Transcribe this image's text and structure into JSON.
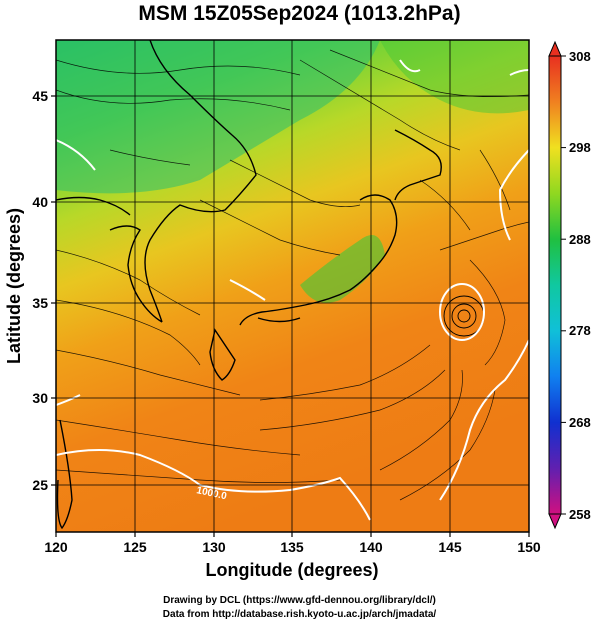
{
  "title": "MSM 15Z05Sep2024 (1013.2hPa)",
  "map": {
    "x_axis": {
      "label": "Longitude (degrees)",
      "range": [
        120,
        150
      ],
      "ticks": [
        120,
        125,
        130,
        135,
        140,
        145,
        150
      ]
    },
    "y_axis": {
      "label": "Latitude  (degrees)",
      "range": [
        22.4,
        47.6
      ],
      "ticks": [
        25,
        30,
        35,
        40,
        45
      ]
    },
    "grid": true,
    "contour_label": "1000.0",
    "colorbar": {
      "min": 258,
      "max": 308,
      "ticks": [
        258,
        268,
        278,
        288,
        298,
        308
      ]
    },
    "colors": {
      "warm": "#f07a10",
      "mid": "#f0c020",
      "cool": "#30c040",
      "contour": "#ffffff",
      "streamline": "#000000"
    },
    "low_center": {
      "lon": 146,
      "lat": 34.5
    }
  },
  "credits": {
    "line1": "Drawing by DCL (https://www.gfd-dennou.org/library/dcl/)",
    "line2": "Data from http://database.rish.kyoto-u.ac.jp/arch/jmadata/"
  }
}
